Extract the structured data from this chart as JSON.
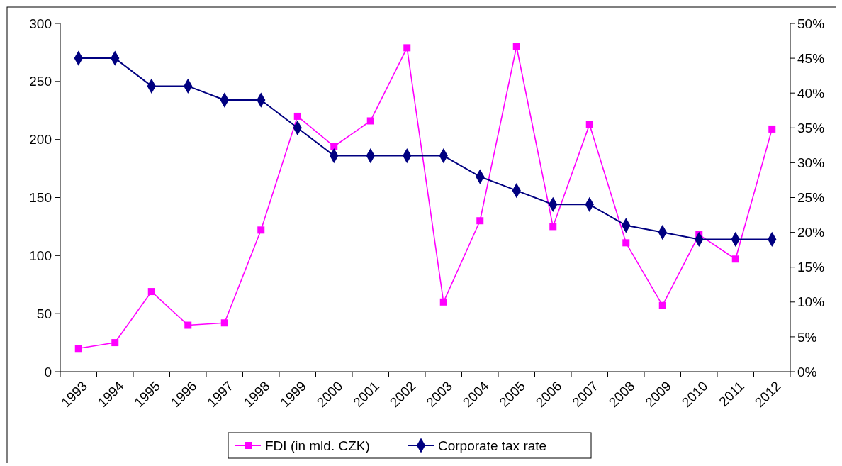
{
  "chart_data": {
    "type": "line",
    "categories": [
      "1993",
      "1994",
      "1995",
      "1996",
      "1997",
      "1998",
      "1999",
      "2000",
      "2001",
      "2002",
      "2003",
      "2004",
      "2005",
      "2006",
      "2007",
      "2008",
      "2009",
      "2010",
      "2011",
      "2012"
    ],
    "series": [
      {
        "name": "FDI (in mld. CZK)",
        "color": "#ff00ff",
        "marker": "square",
        "values": [
          20,
          25,
          69,
          40,
          42,
          122,
          220,
          194,
          216,
          279,
          60,
          130,
          280,
          125,
          213,
          111,
          57,
          118,
          97,
          209
        ]
      },
      {
        "name": "Corporate tax rate",
        "color": "#000080",
        "marker": "diamond",
        "axis": "y2",
        "values": [
          45,
          45,
          41,
          41,
          39,
          39,
          35,
          31,
          31,
          31,
          31,
          28,
          26,
          24,
          24,
          21,
          20,
          19,
          19,
          19
        ]
      }
    ],
    "ylim": [
      0,
      300
    ],
    "yticks": [
      0,
      50,
      100,
      150,
      200,
      250,
      300
    ],
    "y2lim": [
      0,
      50
    ],
    "y2ticks": [
      {
        "value": 0,
        "label": "0%"
      },
      {
        "value": 5,
        "label": "5%"
      },
      {
        "value": 10,
        "label": "10%"
      },
      {
        "value": 15,
        "label": "15%"
      },
      {
        "value": 20,
        "label": "20%"
      },
      {
        "value": 25,
        "label": "25%"
      },
      {
        "value": 30,
        "label": "30%"
      },
      {
        "value": 35,
        "label": "35%"
      },
      {
        "value": 40,
        "label": "40%"
      },
      {
        "value": 45,
        "label": "45%"
      },
      {
        "value": 50,
        "label": "50%"
      }
    ],
    "legend": "bottom",
    "line_style": "solid"
  }
}
